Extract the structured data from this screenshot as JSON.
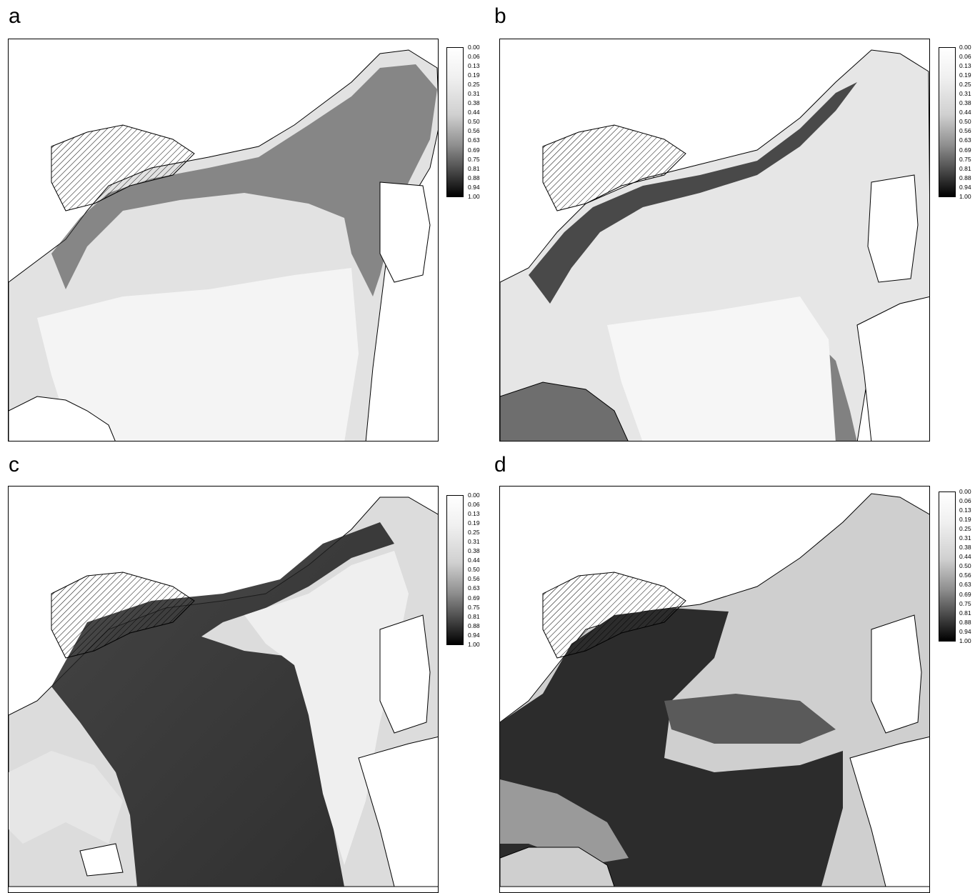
{
  "panels": [
    {
      "label": "a",
      "legend_ticks": [
        "0.00",
        "0.06",
        "0.13",
        "0.19",
        "0.25",
        "0.31",
        "0.38",
        "0.44",
        "0.50",
        "0.56",
        "0.63",
        "0.69",
        "0.75",
        "0.81",
        "0.88",
        "0.94",
        "1.00"
      ]
    },
    {
      "label": "b",
      "legend_ticks": [
        "0.00",
        "0.06",
        "0.13",
        "0.19",
        "0.25",
        "0.31",
        "0.38",
        "0.44",
        "0.50",
        "0.56",
        "0.63",
        "0.69",
        "0.75",
        "0.81",
        "0.88",
        "0.94",
        "1.00"
      ]
    },
    {
      "label": "c",
      "legend_ticks": [
        "0.00",
        "0.06",
        "0.13",
        "0.19",
        "0.25",
        "0.31",
        "0.38",
        "0.44",
        "0.50",
        "0.56",
        "0.63",
        "0.69",
        "0.75",
        "0.81",
        "0.88",
        "0.94",
        "1.00"
      ]
    },
    {
      "label": "d",
      "legend_ticks": [
        "0.00",
        "0.06",
        "0.13",
        "0.19",
        "0.25",
        "0.31",
        "0.38",
        "0.44",
        "0.50",
        "0.56",
        "0.63",
        "0.69",
        "0.75",
        "0.81",
        "0.88",
        "0.94",
        "1.00"
      ]
    }
  ],
  "colors": {
    "low": "#ffffff",
    "high": "#000000",
    "frame": "#000000"
  }
}
